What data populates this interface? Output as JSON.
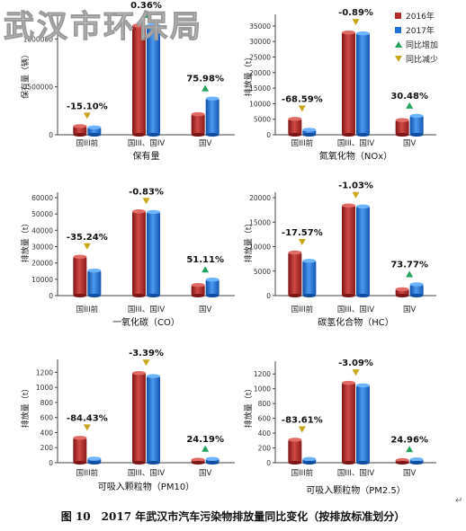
{
  "watermark": "武汉市环保局",
  "caption": "图 10　2017 年武汉市汽车污染物排放量同比变化（按排放标准划分）",
  "return_mark": "↵",
  "legend": {
    "s2016": "2016年",
    "s2017": "2017年",
    "up": "同比增加",
    "down": "同比减少"
  },
  "colors": {
    "s2016": "#b32a2a",
    "s2017": "#1f6fd6",
    "up": "#21a35a",
    "down": "#c9a61c"
  },
  "chart_data": [
    {
      "type": "bar",
      "title": "保有量",
      "ylabel": "保有量（辆）",
      "categories": [
        "国III前",
        "国III、国IV",
        "国V"
      ],
      "series": [
        {
          "name": "2016年",
          "values": [
            90000,
            1140000,
            215000
          ]
        },
        {
          "name": "2017年",
          "values": [
            77000,
            1144000,
            378000
          ]
        }
      ],
      "changes": [
        "-15.10%",
        "0.36%",
        "75.98%"
      ],
      "change_dir": [
        "down",
        "up",
        "up"
      ],
      "ylim": [
        0,
        1200000
      ],
      "yticks": [
        0,
        500000,
        1000000
      ],
      "yticklabels": [
        "0",
        "500000",
        "1000000"
      ]
    },
    {
      "type": "bar",
      "title": "氮氧化物（NOx）",
      "ylabel": "排放量（t）",
      "categories": [
        "国III前",
        "国III、国IV",
        "国V"
      ],
      "series": [
        {
          "name": "2016年",
          "values": [
            5100,
            32900,
            4700
          ]
        },
        {
          "name": "2017年",
          "values": [
            1600,
            32600,
            6100
          ]
        }
      ],
      "changes": [
        "-68.59%",
        "-0.89%",
        "30.48%"
      ],
      "change_dir": [
        "down",
        "down",
        "up"
      ],
      "ylim": [
        0,
        37000
      ],
      "yticks": [
        0,
        5000,
        10000,
        15000,
        20000,
        25000,
        30000,
        35000
      ],
      "yticklabels": [
        "0",
        "5000",
        "10000",
        "15000",
        "20000",
        "25000",
        "30000",
        "35000"
      ]
    },
    {
      "type": "bar",
      "title": "一氧化碳（CO）",
      "ylabel": "排放量（t）",
      "categories": [
        "国III前",
        "国III、国IV",
        "国V"
      ],
      "series": [
        {
          "name": "2016年",
          "values": [
            23800,
            51600,
            6500
          ]
        },
        {
          "name": "2017年",
          "values": [
            15400,
            51200,
            9800
          ]
        }
      ],
      "changes": [
        "-35.24%",
        "-0.83%",
        "51.11%"
      ],
      "change_dir": [
        "down",
        "down",
        "up"
      ],
      "ylim": [
        0,
        60000
      ],
      "yticks": [
        0,
        10000,
        20000,
        30000,
        40000,
        50000,
        60000
      ],
      "yticklabels": [
        "0",
        "10000",
        "20000",
        "30000",
        "40000",
        "50000",
        "60000"
      ]
    },
    {
      "type": "bar",
      "title": "碳氢化合物（HC）",
      "ylabel": "排放量（t）",
      "categories": [
        "国III前",
        "国III、国IV",
        "国V"
      ],
      "series": [
        {
          "name": "2016年",
          "values": [
            8800,
            18400,
            1300
          ]
        },
        {
          "name": "2017年",
          "values": [
            7100,
            18200,
            2300
          ]
        }
      ],
      "changes": [
        "-17.57%",
        "-1.03%",
        "73.77%"
      ],
      "change_dir": [
        "down",
        "down",
        "up"
      ],
      "ylim": [
        0,
        20000
      ],
      "yticks": [
        0,
        5000,
        10000,
        15000,
        20000
      ],
      "yticklabels": [
        "0",
        "5000",
        "10000",
        "15000",
        "20000"
      ]
    },
    {
      "type": "bar",
      "title": "可吸入颗粒物（PM10）",
      "ylabel": "排放量（t）",
      "categories": [
        "国III前",
        "国III、国IV",
        "国V"
      ],
      "series": [
        {
          "name": "2016年",
          "values": [
            330,
            1190,
            40
          ]
        },
        {
          "name": "2017年",
          "values": [
            55,
            1150,
            50
          ]
        }
      ],
      "changes": [
        "-84.43%",
        "-3.39%",
        "24.19%"
      ],
      "change_dir": [
        "down",
        "down",
        "up"
      ],
      "ylim": [
        0,
        1300
      ],
      "yticks": [
        0,
        200,
        400,
        600,
        800,
        1000,
        1200
      ],
      "yticklabels": [
        "0",
        "200",
        "400",
        "600",
        "800",
        "1000",
        "1200"
      ]
    },
    {
      "type": "bar",
      "title": "可吸入颗粒物（PM2.5）",
      "ylabel": "排放量（t）",
      "categories": [
        "国III前",
        "国III、国IV",
        "国V"
      ],
      "series": [
        {
          "name": "2016年",
          "values": [
            310,
            1080,
            35
          ]
        },
        {
          "name": "2017年",
          "values": [
            50,
            1045,
            45
          ]
        }
      ],
      "changes": [
        "-83.61%",
        "-3.09%",
        "24.96%"
      ],
      "change_dir": [
        "down",
        "down",
        "up"
      ],
      "ylim": [
        0,
        1300
      ],
      "yticks": [
        0,
        200,
        400,
        600,
        800,
        1000,
        1200
      ],
      "yticklabels": [
        "0",
        "200",
        "400",
        "600",
        "800",
        "1000",
        "1200"
      ]
    }
  ]
}
